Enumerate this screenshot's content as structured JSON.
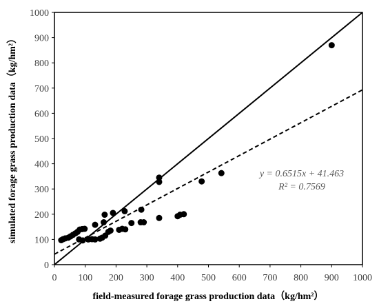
{
  "chart_data": {
    "type": "scatter",
    "title": "",
    "xlabel": "field-measured forage grass production data（kg/hm²）",
    "ylabel": "simulated forage grass production data（kg/hm²）",
    "xlim": [
      0,
      1000
    ],
    "ylim": [
      0,
      1000
    ],
    "x_ticks": [
      "0",
      "100",
      "200",
      "300",
      "400",
      "500",
      "600",
      "700",
      "800",
      "900",
      "1000"
    ],
    "y_ticks": [
      "0",
      "100",
      "200",
      "300",
      "400",
      "500",
      "600",
      "700",
      "800",
      "900",
      "1000"
    ],
    "grid": false,
    "legend": "none",
    "points": [
      {
        "x": 22,
        "y": 97
      },
      {
        "x": 28,
        "y": 101
      },
      {
        "x": 35,
        "y": 104
      },
      {
        "x": 45,
        "y": 107
      },
      {
        "x": 52,
        "y": 112
      },
      {
        "x": 60,
        "y": 118
      },
      {
        "x": 68,
        "y": 124
      },
      {
        "x": 75,
        "y": 130
      },
      {
        "x": 82,
        "y": 139
      },
      {
        "x": 90,
        "y": 141
      },
      {
        "x": 98,
        "y": 142
      },
      {
        "x": 80,
        "y": 100
      },
      {
        "x": 92,
        "y": 96
      },
      {
        "x": 110,
        "y": 100
      },
      {
        "x": 122,
        "y": 101
      },
      {
        "x": 132,
        "y": 100
      },
      {
        "x": 132,
        "y": 158
      },
      {
        "x": 148,
        "y": 103
      },
      {
        "x": 155,
        "y": 107
      },
      {
        "x": 165,
        "y": 115
      },
      {
        "x": 160,
        "y": 168
      },
      {
        "x": 163,
        "y": 198
      },
      {
        "x": 175,
        "y": 130
      },
      {
        "x": 182,
        "y": 135
      },
      {
        "x": 190,
        "y": 205
      },
      {
        "x": 210,
        "y": 138
      },
      {
        "x": 220,
        "y": 142
      },
      {
        "x": 230,
        "y": 140
      },
      {
        "x": 228,
        "y": 212
      },
      {
        "x": 250,
        "y": 165
      },
      {
        "x": 280,
        "y": 168
      },
      {
        "x": 290,
        "y": 168
      },
      {
        "x": 282,
        "y": 218
      },
      {
        "x": 340,
        "y": 185
      },
      {
        "x": 340,
        "y": 328
      },
      {
        "x": 340,
        "y": 345
      },
      {
        "x": 400,
        "y": 192
      },
      {
        "x": 408,
        "y": 198
      },
      {
        "x": 420,
        "y": 200
      },
      {
        "x": 478,
        "y": 330
      },
      {
        "x": 542,
        "y": 363
      },
      {
        "x": 900,
        "y": 870
      }
    ],
    "lines": [
      {
        "style": "solid",
        "x": [
          0,
          1000
        ],
        "y": [
          0,
          1000
        ]
      },
      {
        "style": "dashed",
        "x": [
          0,
          1000
        ],
        "y": [
          41.463,
          692.963
        ]
      }
    ],
    "annotations": [
      "y = 0.6515x + 41.463",
      "R² = 0.7569"
    ]
  }
}
